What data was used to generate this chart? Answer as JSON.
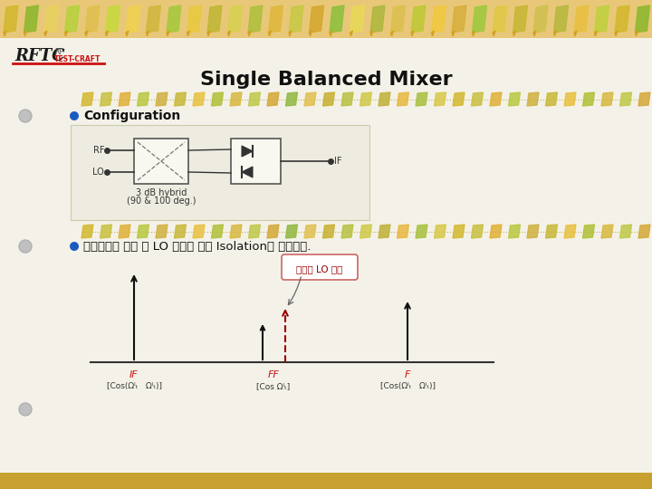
{
  "title": "Single Balanced Mixer",
  "title_fontsize": 16,
  "title_fontweight": "bold",
  "bg_color": "#f0ede0",
  "header_bg": "#e8c878",
  "bullet_color": "#1a5bbf",
  "bullet1_text": "Configuration",
  "bullet2_text": "상대적으로 매우 큰 LO 신호에 대한 Isolation이 가능하다.",
  "rf_label": "RF",
  "lo_label": "LO",
  "if_label": "IF",
  "hybrid_label1": "3 dB hybrid",
  "hybrid_label2": "(90 & 100 deg.)",
  "spectrum_label_if": "IF",
  "spectrum_label_ff": "FF",
  "spectrum_label_f": "F",
  "spectrum_sublabel_if": "[Cos(Ωᴵₜ   Ωᴵₜ)]",
  "spectrum_sublabel_ff": "[Cos Ωᴵₜ]",
  "spectrum_sublabel_f": "[Cos(Ωᴵₜ   Ωᴵₜ)]",
  "annotation_text": "저서를 LO 신호",
  "dashed_color": "#990000",
  "arrow_color": "#111111",
  "bottom_bar_color": "#c8a030",
  "gray_dot_color": "#aaaaaa",
  "candy_colors_top": [
    "#d4b830",
    "#90b830",
    "#e8d060",
    "#b8d040",
    "#e0c050",
    "#c8d840",
    "#f0d050",
    "#d0b840",
    "#a8c840",
    "#e8c840",
    "#c0b838",
    "#d8d050",
    "#b0c040",
    "#e0b840",
    "#c8c848",
    "#d4a830",
    "#90c040",
    "#e8d858",
    "#b0b840",
    "#dcc050",
    "#c0c838",
    "#f0c840",
    "#d8b040",
    "#a0c840",
    "#e0c848",
    "#c8b838",
    "#d0c050",
    "#b8b840",
    "#e8c040",
    "#c0d040"
  ],
  "candy_colors_mid": [
    "#d4b830",
    "#c8c040",
    "#e0b038",
    "#b8c840",
    "#d0b040",
    "#c8b838",
    "#e8c040",
    "#b0c038",
    "#d8b840",
    "#c0c848",
    "#d4a838",
    "#90b840",
    "#e0c050",
    "#c8b030",
    "#b8c040",
    "#d0c848",
    "#c0b038",
    "#e8b840",
    "#a8c040",
    "#d8c848"
  ]
}
